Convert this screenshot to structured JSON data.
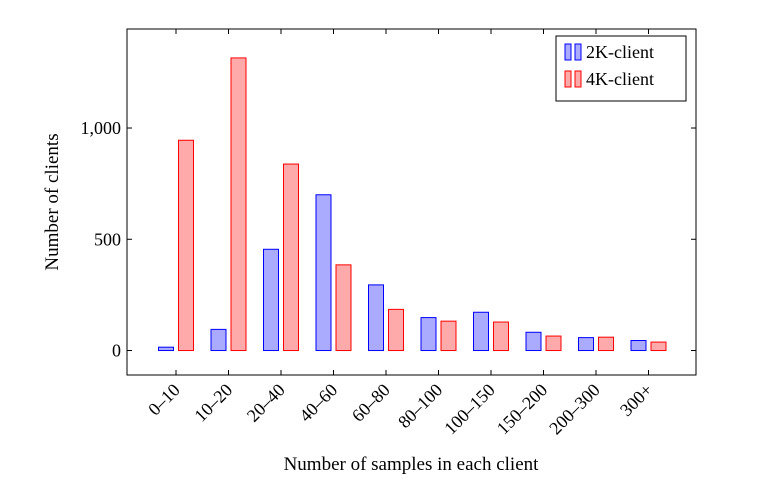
{
  "chart_data": {
    "type": "bar",
    "xlabel": "Number of samples in each client",
    "ylabel": "Number of clients",
    "categories": [
      "0–10",
      "10–20",
      "20–40",
      "40–60",
      "60–80",
      "80–100",
      "100–150",
      "150–200",
      "200–300",
      "300+"
    ],
    "series": [
      {
        "name": "2K-client",
        "color": "#0000ff",
        "fill": "#aaaaff",
        "values": [
          15,
          95,
          455,
          700,
          295,
          148,
          172,
          82,
          58,
          45
        ]
      },
      {
        "name": "4K-client",
        "color": "#ff0000",
        "fill": "#ffaaaa",
        "values": [
          945,
          1315,
          838,
          385,
          185,
          132,
          128,
          65,
          60,
          38
        ]
      }
    ],
    "yticks": [
      0,
      500,
      1000
    ],
    "ytick_labels": [
      "0",
      "500",
      "1,000"
    ],
    "ylim": [
      -110,
      1445
    ],
    "grid": false,
    "legend_position": "top-right"
  }
}
